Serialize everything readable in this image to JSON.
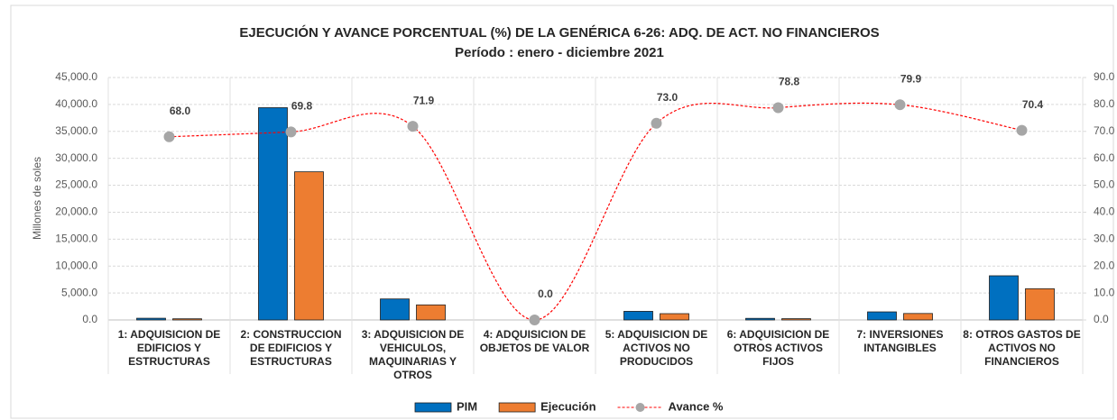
{
  "chart_data": {
    "type": "bar_line",
    "title": "EJECUCIÓN Y AVANCE PORCENTUAL (%) DE LA GENÉRICA 6-26: ADQ. DE ACT. NO FINANCIEROS",
    "subtitle": "Período : enero - diciembre 2021",
    "y_label": "Millones de soles",
    "categories": [
      "1: ADQUISICION DE\nEDIFICIOS Y\nESTRUCTURAS",
      "2: CONSTRUCCION\nDE EDIFICIOS Y\nESTRUCTURAS",
      "3: ADQUISICION DE\nVEHICULOS,\nMAQUINARIAS Y\nOTROS",
      "4: ADQUISICION DE\nOBJETOS DE VALOR",
      "5: ADQUISICION DE\nACTIVOS NO\nPRODUCIDOS",
      "6: ADQUISICION DE\nOTROS ACTIVOS\nFIJOS",
      "7: INVERSIONES\nINTANGIBLES",
      "8: OTROS GASTOS DE\nACTIVOS NO\nFINANCIEROS"
    ],
    "series": [
      {
        "name": "PIM",
        "color": "#0070c0",
        "values": [
          320,
          39400,
          3900,
          0,
          1600,
          300,
          1500,
          8200
        ]
      },
      {
        "name": "Ejecución",
        "color": "#ed7d31",
        "values": [
          218,
          27500,
          2800,
          0,
          1170,
          236,
          1200,
          5800
        ]
      },
      {
        "name": "Avance %",
        "color": "#ff0000",
        "marker_color": "#a6a6a6",
        "axis": "y2",
        "values": [
          68.0,
          69.8,
          71.9,
          0.0,
          73.0,
          78.8,
          79.9,
          70.4
        ],
        "value_labels": [
          "68.0",
          "69.8",
          "71.9",
          "0.0",
          "73.0",
          "78.8",
          "79.9",
          "70.4"
        ]
      }
    ],
    "ylim": [
      0,
      45000
    ],
    "yticks": [
      {
        "value": 0,
        "label": "0.0"
      },
      {
        "value": 5000,
        "label": "5,000.0"
      },
      {
        "value": 10000,
        "label": "10,000.0"
      },
      {
        "value": 15000,
        "label": "15,000.0"
      },
      {
        "value": 20000,
        "label": "20,000.0"
      },
      {
        "value": 25000,
        "label": "25,000.0"
      },
      {
        "value": 30000,
        "label": "30,000.0"
      },
      {
        "value": 35000,
        "label": "35,000.0"
      },
      {
        "value": 40000,
        "label": "40,000.0"
      },
      {
        "value": 45000,
        "label": "45,000.0"
      }
    ],
    "y2lim": [
      0,
      90
    ],
    "y2ticks": [
      {
        "value": 0,
        "label": "0.0"
      },
      {
        "value": 10,
        "label": "10.0"
      },
      {
        "value": 20,
        "label": "20.0"
      },
      {
        "value": 30,
        "label": "30.0"
      },
      {
        "value": 40,
        "label": "40.0"
      },
      {
        "value": 50,
        "label": "50.0"
      },
      {
        "value": 60,
        "label": "60.0"
      },
      {
        "value": 70,
        "label": "70.0"
      },
      {
        "value": 80,
        "label": "80.0"
      },
      {
        "value": 90,
        "label": "90.0"
      }
    ],
    "grid": true
  }
}
